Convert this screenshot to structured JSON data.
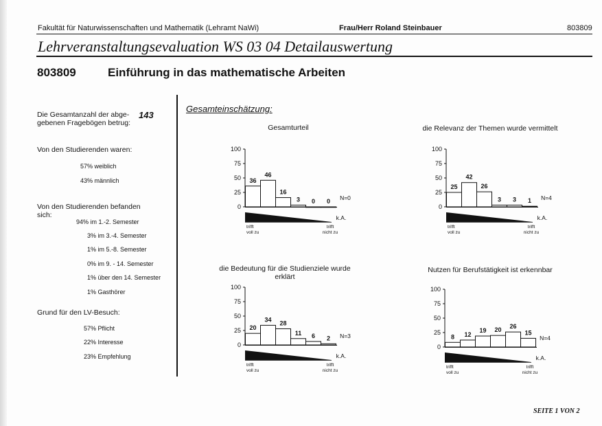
{
  "header": {
    "faculty": "Fakultät für Naturwissenschaften und Mathematik (Lehramt NaWi)",
    "lecturer": "Frau/Herr Roland Steinbauer",
    "number": "803809"
  },
  "title": "Lehrveranstaltungsevaluation WS 03 04 Detailauswertung",
  "course": {
    "number": "803809",
    "title": "Einführung in das mathematische Arbeiten"
  },
  "left": {
    "total_label_1": "Die Gesamtanzahl der abge-",
    "total_label_2": "gebenen Fragebögen betrug:",
    "total_value": "143",
    "gender_heading": "Von den Studierenden waren:",
    "gender": [
      "57%  weiblich",
      "43%  männlich"
    ],
    "semester_heading_1": "Von den Studierenden befanden",
    "semester_heading_2": "sich:",
    "semesters": [
      "94% im 1.-2. Semester",
      "3% im 3.-4. Semester",
      "1% im 5.-8. Semester",
      "0% im 9. - 14. Semester",
      "1% über den 14. Semester",
      "1% Gasthörer"
    ],
    "reason_heading": "Grund für den LV-Besuch:",
    "reasons": [
      "57% Pflicht",
      "22% Interesse",
      "23% Empfehlung"
    ]
  },
  "section_title": "Gesamteinschätzung:",
  "scale_labels": {
    "left_1": "trifft",
    "left_2": "voll zu",
    "right_1": "trifft",
    "right_2": "nicht zu",
    "ka": "k.A."
  },
  "chart_data": [
    {
      "type": "bar",
      "title": "Gesamturteil",
      "values": [
        36,
        46,
        16,
        3,
        0,
        0
      ],
      "n_label": "N=0",
      "yticks": [
        0,
        25,
        50,
        75,
        100
      ],
      "ylim": [
        0,
        100
      ]
    },
    {
      "type": "bar",
      "title": "die Relevanz der Themen wurde vermittelt",
      "values": [
        25,
        42,
        26,
        3,
        3,
        1
      ],
      "n_label": "N=4",
      "yticks": [
        0,
        25,
        50,
        75,
        100
      ],
      "ylim": [
        0,
        100
      ]
    },
    {
      "type": "bar",
      "title_1": "die Bedeutung für die Studienziele wurde",
      "title_2": "erklärt",
      "values": [
        20,
        34,
        28,
        11,
        6,
        2
      ],
      "n_label": "N=3",
      "yticks": [
        0,
        25,
        50,
        75,
        100
      ],
      "ylim": [
        0,
        100
      ]
    },
    {
      "type": "bar",
      "title": "Nutzen für Berufstätigkeit ist erkennbar",
      "values": [
        8,
        12,
        19,
        20,
        26,
        15
      ],
      "n_label": "N=4",
      "yticks": [
        0,
        25,
        50,
        75,
        100
      ],
      "ylim": [
        0,
        100
      ]
    }
  ],
  "footer": "SEITE 1 VON 2"
}
